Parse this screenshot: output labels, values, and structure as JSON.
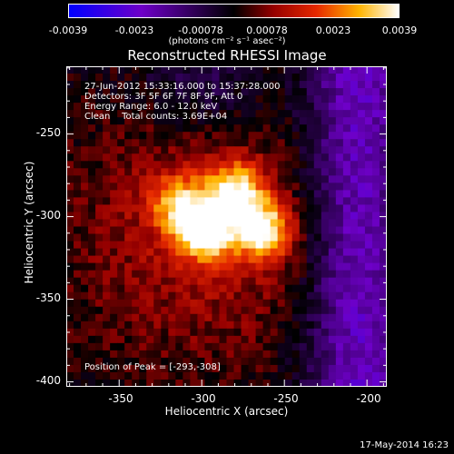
{
  "colorbar": {
    "ticks": [
      "-0.0039",
      "-0.0023",
      "-0.00078",
      "0.00078",
      "0.0023",
      "0.0039"
    ],
    "unit": "(photons cm⁻² s⁻¹ asec⁻²)"
  },
  "chart_data": {
    "type": "heatmap",
    "title": "Reconstructed RHESSI Image",
    "xlabel": "Heliocentric X (arcsec)",
    "ylabel": "Heliocentric Y (arcsec)",
    "xlim": [
      -382,
      -188
    ],
    "ylim": [
      -403,
      -209
    ],
    "xticks": [
      "-350",
      "-300",
      "-250",
      "-200"
    ],
    "yticks": [
      "-250",
      "-300",
      "-350",
      "-400"
    ],
    "value_range": [
      -0.0039,
      0.0039
    ],
    "colormap": "rainbow-like (blue-purple-red-orange-yellow-white)",
    "sources": [
      {
        "x": -298,
        "y": -308,
        "amplitude": 0.0039
      },
      {
        "x": -263,
        "y": -308,
        "amplitude": 0.0034
      },
      {
        "x": -280,
        "y": -284,
        "amplitude": 0.003
      },
      {
        "x": -315,
        "y": -292,
        "amplitude": 0.0022
      }
    ],
    "annotations": {
      "time": "27-Jun-2012 15:33:16.000 to 15:37:28.000",
      "detectors": "Detectors: 3F 5F 6F 7F 8F 9F, Att 0",
      "energy": "Energy Range: 6.0 - 12.0 keV",
      "method": "Clean    Total counts: 3.69E+04",
      "peak": "Position of Peak = [-293,-308]"
    }
  },
  "footer": "17-May-2014 16:23"
}
